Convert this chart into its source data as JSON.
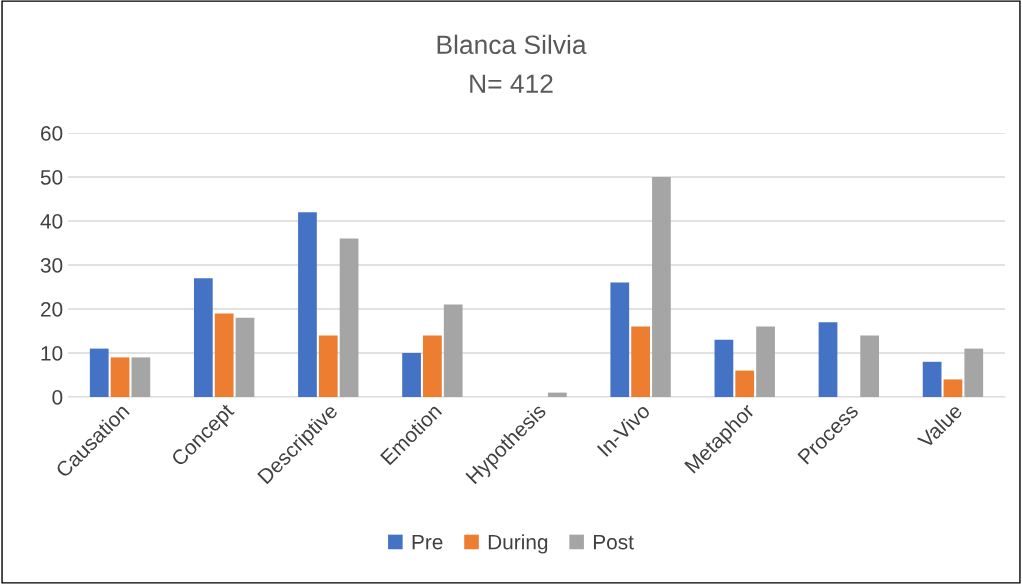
{
  "chart_data": {
    "type": "bar",
    "title": "Blanca Silvia",
    "subtitle": "N= 412",
    "categories": [
      "Causation",
      "Concept",
      "Descriptive",
      "Emotion",
      "Hypothesis",
      "In-Vivo",
      "Metaphor",
      "Process",
      "Value"
    ],
    "series": [
      {
        "name": "Pre",
        "color": "#4472c4",
        "values": [
          11,
          27,
          42,
          10,
          0,
          26,
          13,
          17,
          8
        ]
      },
      {
        "name": "During",
        "color": "#ed7d31",
        "values": [
          9,
          19,
          14,
          14,
          0,
          16,
          6,
          0,
          4
        ]
      },
      {
        "name": "Post",
        "color": "#a5a5a5",
        "values": [
          9,
          18,
          36,
          21,
          1,
          50,
          16,
          14,
          11
        ]
      }
    ],
    "ylim": [
      0,
      60
    ],
    "yticks": [
      0,
      10,
      20,
      30,
      40,
      50,
      60
    ],
    "grid": "y",
    "legend": "bottom"
  }
}
